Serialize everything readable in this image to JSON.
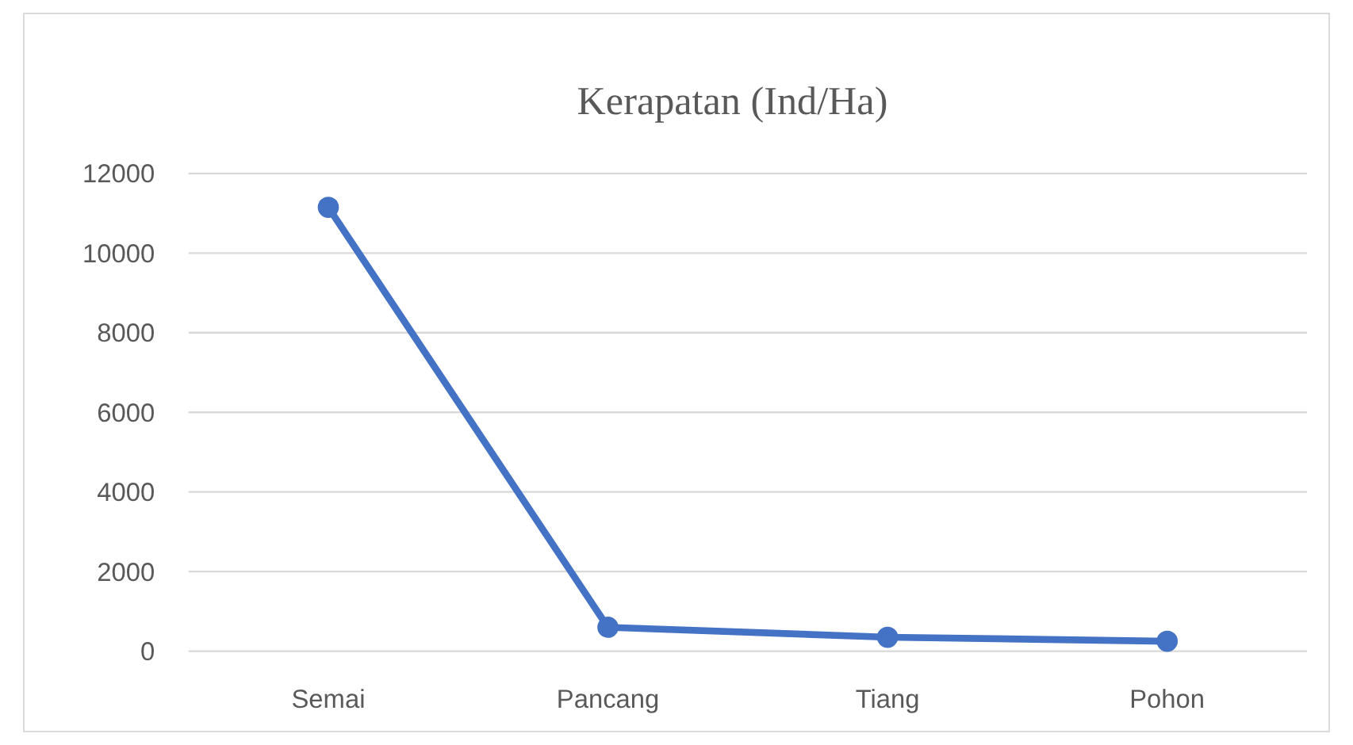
{
  "chart_data": {
    "type": "line",
    "title": "Kerapatan (Ind/Ha)",
    "categories": [
      "Semai",
      "Pancang",
      "Tiang",
      "Pohon"
    ],
    "series": [
      {
        "color": "#4472c4",
        "values": [
          11150,
          600,
          350,
          250
        ]
      }
    ],
    "ylim": [
      0,
      12000
    ],
    "yticks": [
      0,
      2000,
      4000,
      6000,
      8000,
      10000,
      12000
    ],
    "grid": "y",
    "marker": "circle",
    "line_style": "solid"
  }
}
